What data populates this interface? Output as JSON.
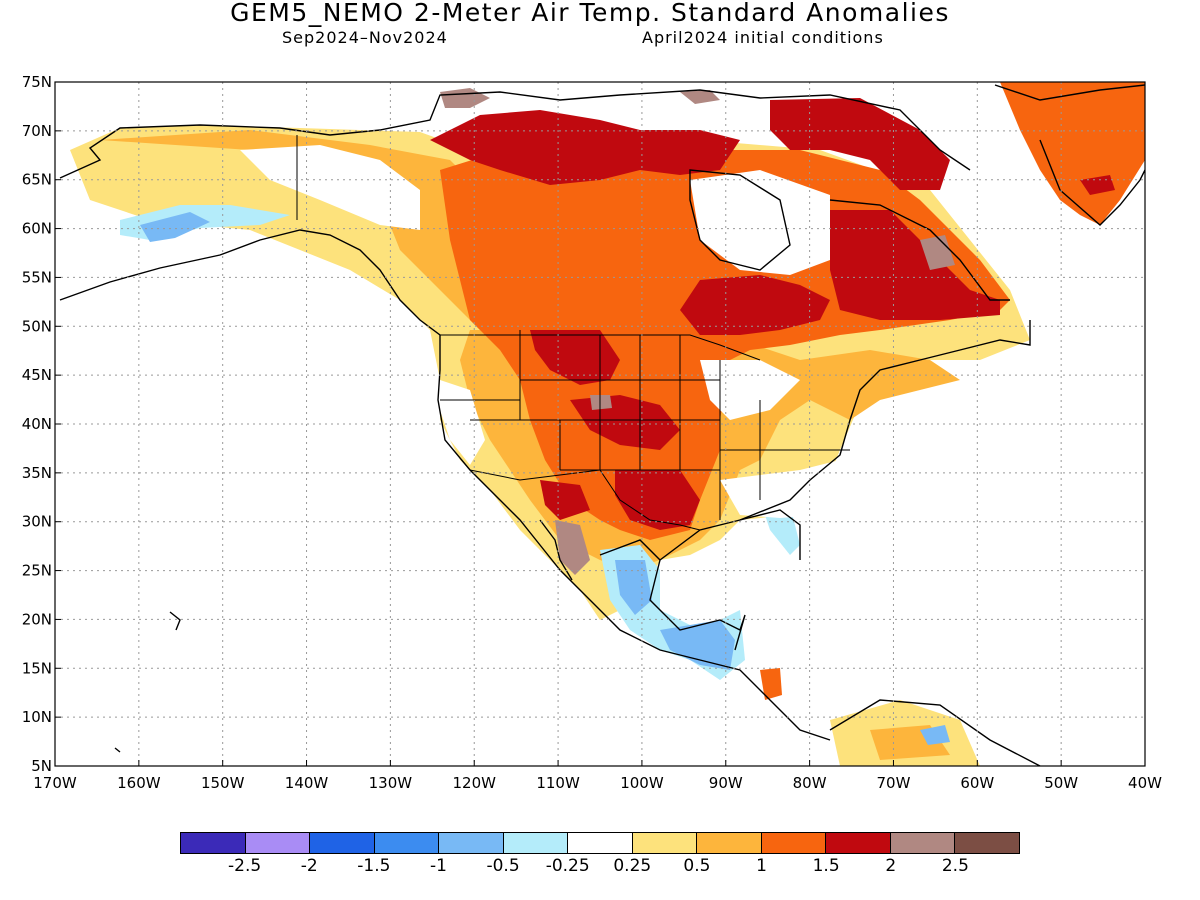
{
  "title": "GEM5_NEMO 2-Meter Air Temp. Standard Anomalies",
  "subtitle_period": "Sep2024–Nov2024",
  "subtitle_init": "April2024 initial conditions",
  "lat_labels": [
    "75N",
    "70N",
    "65N",
    "60N",
    "55N",
    "50N",
    "45N",
    "40N",
    "35N",
    "30N",
    "25N",
    "20N",
    "15N",
    "10N",
    "5N"
  ],
  "lon_labels": [
    "170W",
    "160W",
    "150W",
    "140W",
    "130W",
    "120W",
    "110W",
    "100W",
    "90W",
    "80W",
    "70W",
    "60W",
    "50W",
    "40W"
  ],
  "colorbar": {
    "colors": [
      "#3b2ab8",
      "#a98cf5",
      "#1f63e6",
      "#3c8cf0",
      "#78b9f5",
      "#b4ecfa",
      "#ffffff",
      "#fde27c",
      "#fdb53c",
      "#f7650f",
      "#c0090f",
      "#b08882",
      "#7c4e44"
    ],
    "labels": [
      "-2.5",
      "-2",
      "-1.5",
      "-1",
      "-0.5",
      "-0.25",
      "0.25",
      "0.5",
      "1",
      "1.5",
      "2",
      "2.5"
    ]
  }
}
